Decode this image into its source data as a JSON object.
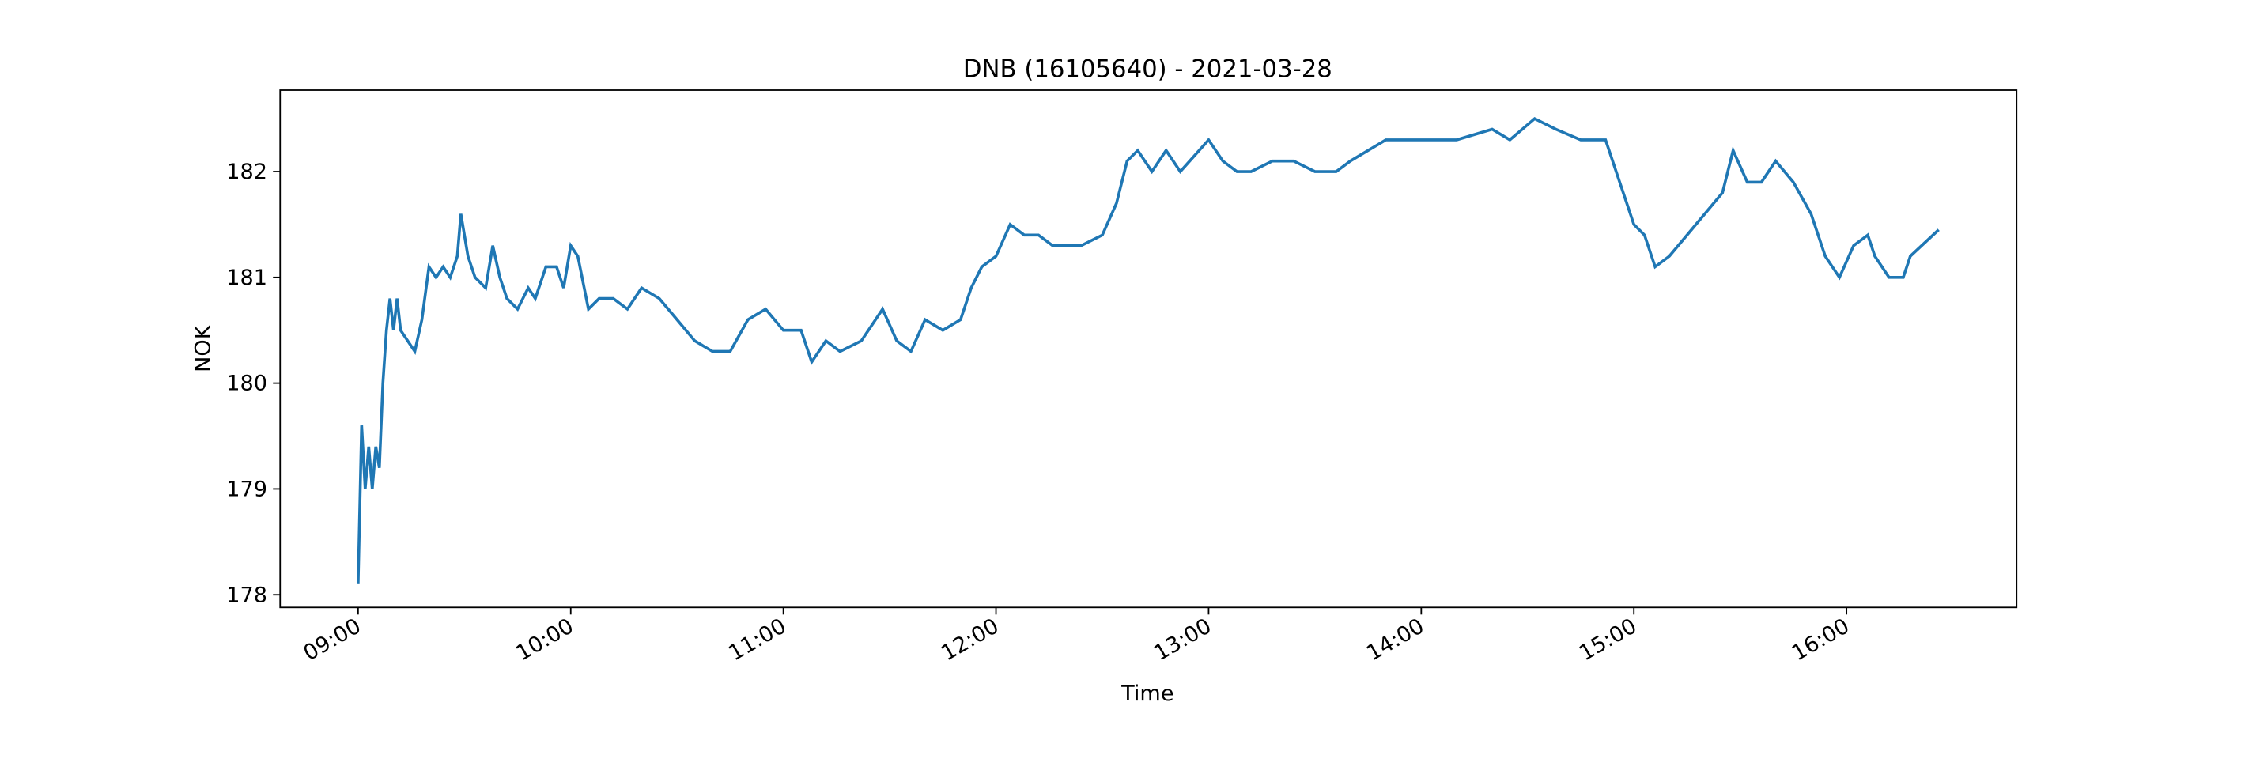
{
  "chart_data": {
    "type": "line",
    "title": "DNB (16105640) - 2021-03-28",
    "x_label": "Time",
    "y_label": "NOK",
    "x": [
      "09:00",
      "09:01",
      "09:02",
      "09:03",
      "09:04",
      "09:05",
      "09:06",
      "09:07",
      "09:08",
      "09:09",
      "09:10",
      "09:11",
      "09:12",
      "09:14",
      "09:16",
      "09:18",
      "09:20",
      "09:22",
      "09:24",
      "09:26",
      "09:28",
      "09:29",
      "09:31",
      "09:33",
      "09:36",
      "09:38",
      "09:40",
      "09:42",
      "09:45",
      "09:48",
      "09:50",
      "09:53",
      "09:56",
      "09:58",
      "10:00",
      "10:02",
      "10:05",
      "10:08",
      "10:12",
      "10:16",
      "10:20",
      "10:25",
      "10:30",
      "10:35",
      "10:40",
      "10:45",
      "10:50",
      "10:55",
      "11:00",
      "11:05",
      "11:08",
      "11:12",
      "11:16",
      "11:22",
      "11:28",
      "11:32",
      "11:36",
      "11:40",
      "11:45",
      "11:50",
      "11:53",
      "11:56",
      "12:00",
      "12:04",
      "12:08",
      "12:12",
      "12:16",
      "12:20",
      "12:24",
      "12:30",
      "12:34",
      "12:37",
      "12:40",
      "12:44",
      "12:48",
      "12:52",
      "13:00",
      "13:04",
      "13:08",
      "13:12",
      "13:18",
      "13:24",
      "13:30",
      "13:36",
      "13:40",
      "13:45",
      "13:50",
      "14:00",
      "14:10",
      "14:20",
      "14:25",
      "14:32",
      "14:38",
      "14:45",
      "14:52",
      "14:56",
      "15:00",
      "15:03",
      "15:06",
      "15:10",
      "15:15",
      "15:20",
      "15:25",
      "15:28",
      "15:32",
      "15:36",
      "15:40",
      "15:45",
      "15:50",
      "15:54",
      "15:58",
      "16:02",
      "16:06",
      "16:08",
      "16:12",
      "16:16",
      "16:18",
      "16:26"
    ],
    "series": [
      {
        "name": "DNB",
        "color": "#1f77b4",
        "values": [
          178.1,
          179.6,
          179.0,
          179.4,
          179.0,
          179.4,
          179.2,
          180.0,
          180.5,
          180.8,
          180.5,
          180.8,
          180.5,
          180.4,
          180.3,
          180.6,
          181.1,
          181.0,
          181.1,
          181.0,
          181.2,
          181.6,
          181.2,
          181.0,
          180.9,
          181.3,
          181.0,
          180.8,
          180.7,
          180.9,
          180.8,
          181.1,
          181.1,
          180.9,
          181.3,
          181.2,
          180.7,
          180.8,
          180.8,
          180.7,
          180.9,
          180.8,
          180.6,
          180.4,
          180.3,
          180.3,
          180.6,
          180.7,
          180.5,
          180.5,
          180.2,
          180.4,
          180.3,
          180.4,
          180.7,
          180.4,
          180.3,
          180.6,
          180.5,
          180.6,
          180.9,
          181.1,
          181.2,
          181.5,
          181.4,
          181.4,
          181.3,
          181.3,
          181.3,
          181.4,
          181.7,
          182.1,
          182.2,
          182.0,
          182.2,
          182.0,
          182.3,
          182.1,
          182.0,
          182.0,
          182.1,
          182.1,
          182.0,
          182.0,
          182.1,
          182.2,
          182.3,
          182.3,
          182.3,
          182.4,
          182.3,
          182.5,
          182.4,
          182.3,
          182.3,
          181.9,
          181.5,
          181.4,
          181.1,
          181.2,
          181.4,
          181.6,
          181.8,
          182.2,
          181.9,
          181.9,
          182.1,
          181.9,
          181.6,
          181.2,
          181.0,
          181.3,
          181.4,
          181.2,
          181.0,
          181.0,
          181.2,
          181.45
        ]
      }
    ],
    "xlim": [
      "08:38",
      "16:48"
    ],
    "xticks": [
      "09:00",
      "10:00",
      "11:00",
      "12:00",
      "13:00",
      "14:00",
      "15:00",
      "16:00"
    ],
    "ylim": [
      177.88,
      182.77
    ],
    "yticks": [
      178,
      179,
      180,
      181,
      182
    ]
  }
}
